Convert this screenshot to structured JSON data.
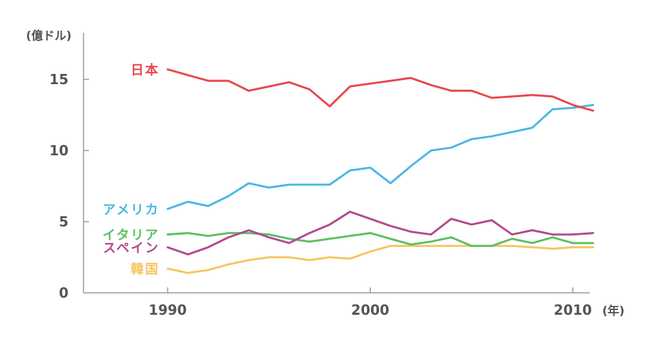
{
  "chart_data": {
    "type": "line",
    "ylabel": "(億ドル)",
    "xlabel": "(年)",
    "ylim": [
      0,
      17.5
    ],
    "xlim": [
      1986,
      2011
    ],
    "yticks": [
      {
        "value": 0,
        "label": "0"
      },
      {
        "value": 5,
        "label": "5"
      },
      {
        "value": 10,
        "label": "10"
      },
      {
        "value": 15,
        "label": "15"
      }
    ],
    "xticks": [
      {
        "value": 1990,
        "label": "1990"
      },
      {
        "value": 2000,
        "label": "2000"
      },
      {
        "value": 2010,
        "label": "2010"
      }
    ],
    "grid": false,
    "legend": "inline labels at left end of each line",
    "series": [
      {
        "name": "日本",
        "color": "#e8474e",
        "x": [
          1990,
          1991,
          1992,
          1993,
          1994,
          1995,
          1996,
          1997,
          1998,
          1999,
          2000,
          2001,
          2002,
          2003,
          2004,
          2005,
          2006,
          2007,
          2008,
          2009,
          2010,
          2011
        ],
        "y": [
          15.7,
          15.3,
          14.9,
          14.9,
          14.2,
          14.5,
          14.8,
          14.3,
          13.1,
          14.5,
          14.7,
          14.9,
          15.1,
          14.6,
          14.2,
          14.2,
          13.7,
          13.8,
          13.9,
          13.8,
          13.2,
          12.8
        ]
      },
      {
        "name": "アメリカ",
        "color": "#4db6e3",
        "x": [
          1990,
          1991,
          1992,
          1993,
          1994,
          1995,
          1996,
          1997,
          1998,
          1999,
          2000,
          2001,
          2002,
          2003,
          2004,
          2005,
          2006,
          2007,
          2008,
          2009,
          2010,
          2011
        ],
        "y": [
          5.9,
          6.4,
          6.1,
          6.8,
          7.7,
          7.4,
          7.6,
          7.6,
          7.6,
          8.6,
          8.8,
          7.7,
          8.9,
          10.0,
          10.2,
          10.8,
          11.0,
          11.3,
          11.6,
          12.9,
          13.0,
          13.2
        ]
      },
      {
        "name": "イタリア",
        "color": "#5cbf61",
        "x": [
          1990,
          1991,
          1992,
          1993,
          1994,
          1995,
          1996,
          1997,
          1998,
          1999,
          2000,
          2001,
          2002,
          2003,
          2004,
          2005,
          2006,
          2007,
          2008,
          2009,
          2010,
          2011
        ],
        "y": [
          4.1,
          4.2,
          4.0,
          4.2,
          4.2,
          4.1,
          3.8,
          3.6,
          3.8,
          4.0,
          4.2,
          3.8,
          3.4,
          3.6,
          3.9,
          3.3,
          3.3,
          3.8,
          3.5,
          3.9,
          3.5,
          3.5
        ]
      },
      {
        "name": "スペイン",
        "color": "#b14a8d",
        "x": [
          1990,
          1991,
          1992,
          1993,
          1994,
          1995,
          1996,
          1997,
          1998,
          1999,
          2000,
          2001,
          2002,
          2003,
          2004,
          2005,
          2006,
          2007,
          2008,
          2009,
          2010,
          2011
        ],
        "y": [
          3.2,
          2.7,
          3.2,
          3.9,
          4.4,
          3.9,
          3.5,
          4.2,
          4.8,
          5.7,
          5.2,
          4.7,
          4.3,
          4.1,
          5.2,
          4.8,
          5.1,
          4.1,
          4.4,
          4.1,
          4.1,
          4.2
        ]
      },
      {
        "name": "韓国",
        "color": "#f6c560",
        "x": [
          1990,
          1991,
          1992,
          1993,
          1994,
          1995,
          1996,
          1997,
          1998,
          1999,
          2000,
          2001,
          2002,
          2003,
          2004,
          2005,
          2006,
          2007,
          2008,
          2009,
          2010,
          2011
        ],
        "y": [
          1.7,
          1.4,
          1.6,
          2.0,
          2.3,
          2.5,
          2.5,
          2.3,
          2.5,
          2.4,
          2.9,
          3.3,
          3.3,
          3.3,
          3.3,
          3.3,
          3.3,
          3.3,
          3.2,
          3.1,
          3.2,
          3.2
        ]
      }
    ]
  }
}
